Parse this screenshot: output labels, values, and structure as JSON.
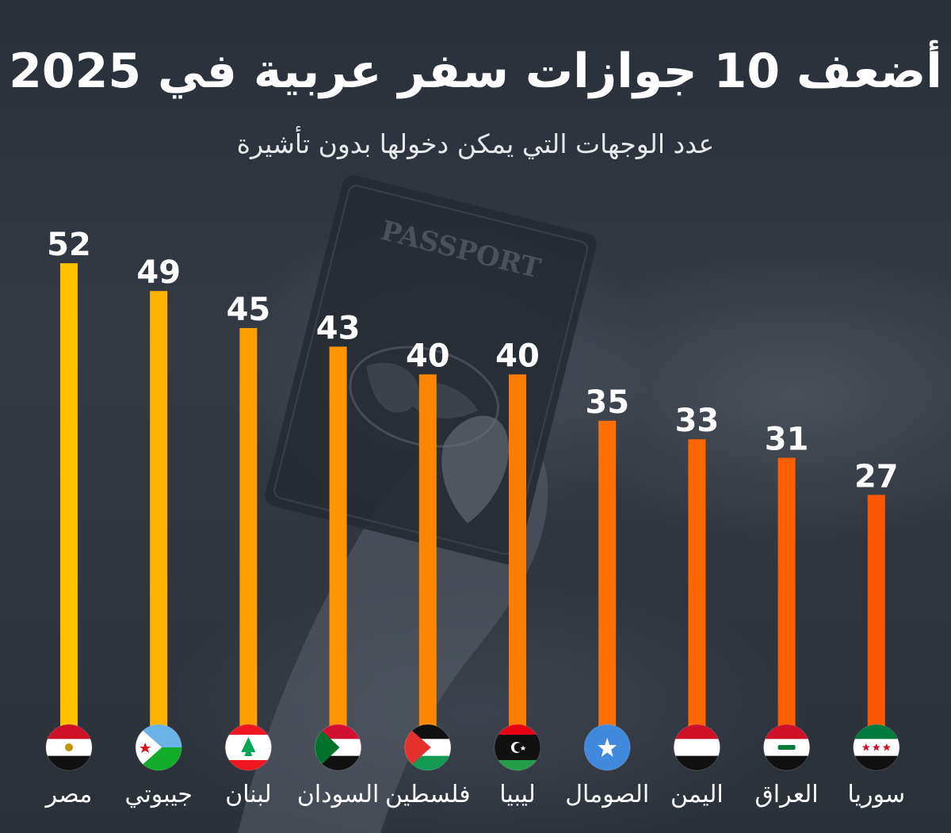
{
  "chart_data": {
    "type": "bar",
    "title": "أضعف 10 جوازات سفر عربية في 2025",
    "subtitle": "عدد الوجهات التي يمكن دخولها بدون تأشيرة",
    "categories": [
      "مصر",
      "جيبوتي",
      "لبنان",
      "السودان",
      "فلسطين",
      "ليبيا",
      "الصومال",
      "اليمن",
      "العراق",
      "سوريا"
    ],
    "values": [
      52,
      49,
      45,
      43,
      40,
      40,
      35,
      33,
      31,
      27
    ],
    "flags": [
      "egypt-flag-icon",
      "djibouti-flag-icon",
      "lebanon-flag-icon",
      "sudan-flag-icon",
      "palestine-flag-icon",
      "libya-flag-icon",
      "somalia-flag-icon",
      "yemen-flag-icon",
      "iraq-flag-icon",
      "syria-flag-icon"
    ],
    "bar_colors": [
      "#ffc000",
      "#ffb300",
      "#ffa000",
      "#ff9300",
      "#ff8700",
      "#ff7c00",
      "#ff7000",
      "#ff6600",
      "#ff5e00",
      "#ff5600"
    ],
    "ylim": [
      0,
      52
    ],
    "grid": false,
    "legend": "none",
    "background_photo": "passport-in-hand"
  }
}
